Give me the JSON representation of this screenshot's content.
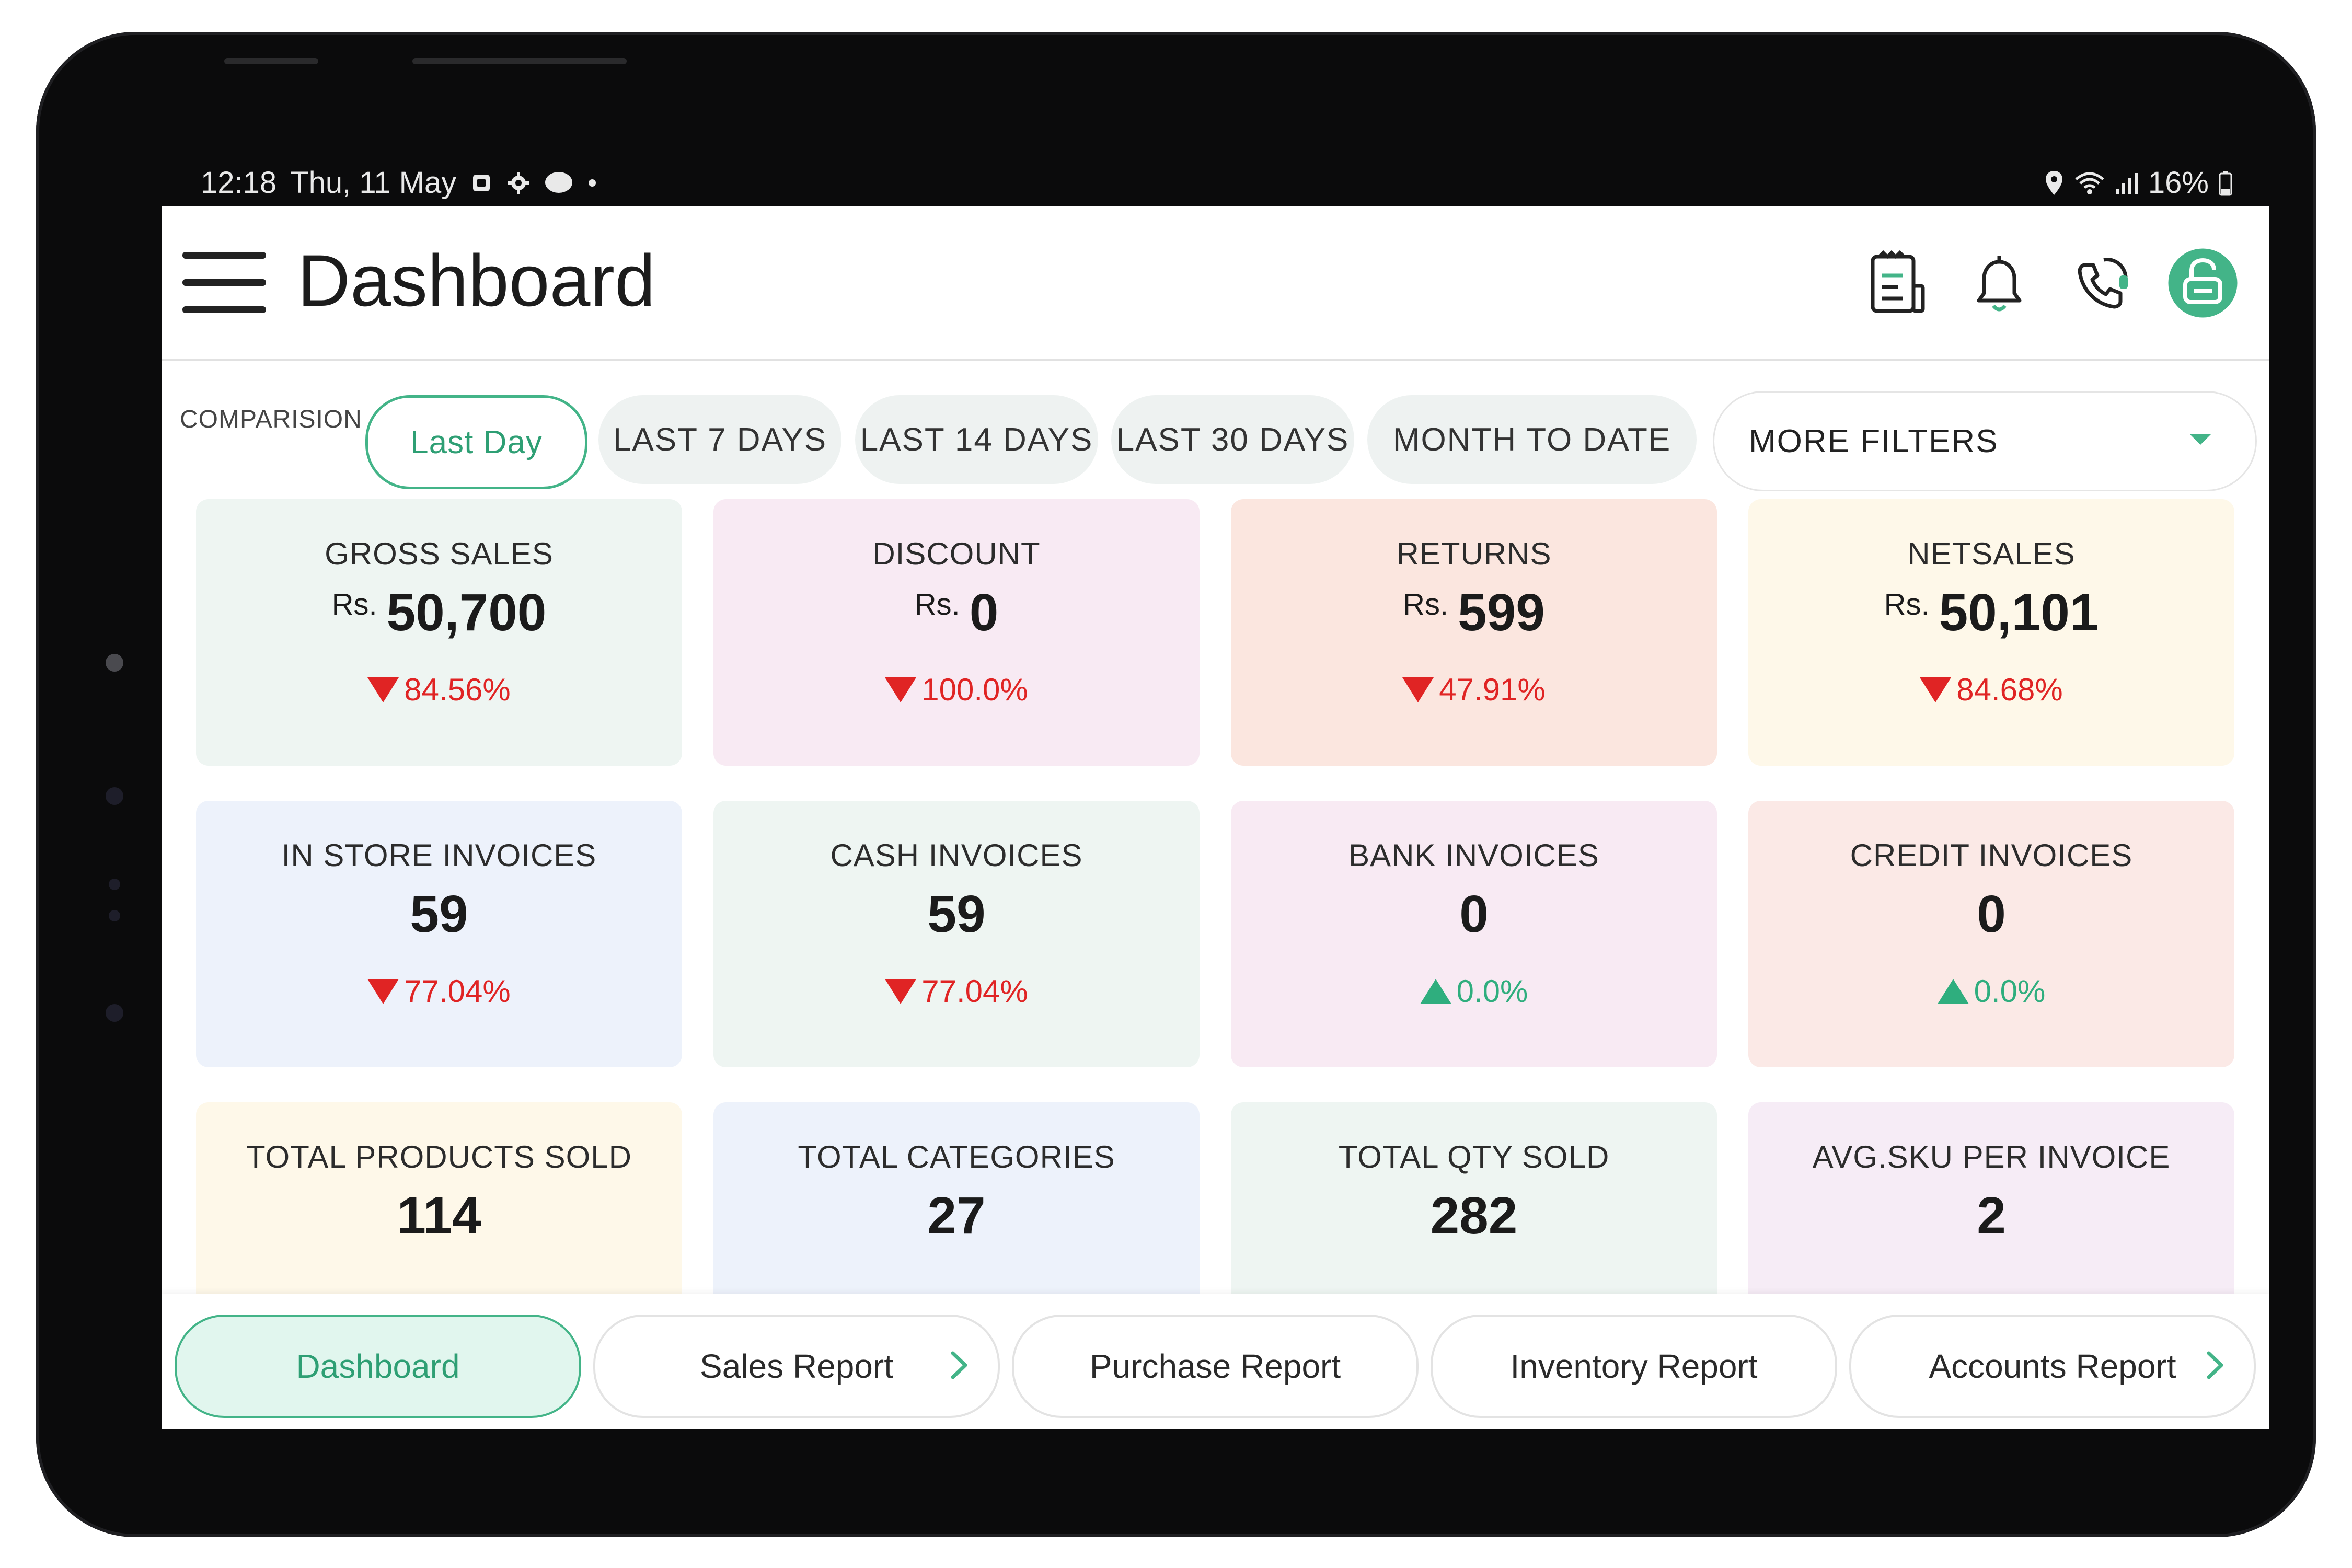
{
  "status_bar": {
    "time": "12:18",
    "date": "Thu, 11 May",
    "battery": "16%",
    "icons_left": [
      "notification-icon",
      "settings-icon",
      "message-icon",
      "dot-icon"
    ],
    "icons_right": [
      "location-icon",
      "wifi-icon",
      "signal-icon",
      "battery-icon"
    ]
  },
  "header": {
    "title": "Dashboard",
    "icons": [
      "report-icon",
      "bell-icon",
      "support-call-icon",
      "lock-icon"
    ],
    "accent_color": "#43b488"
  },
  "filters": {
    "comparison_label": "COMPARISION",
    "chips": [
      "Last Day",
      "LAST 7 DAYS",
      "LAST 14 DAYS",
      "LAST 30 DAYS",
      "MONTH TO DATE"
    ],
    "active_chip": "Last Day",
    "more_filters": "MORE FILTERS"
  },
  "cards": [
    {
      "label": "GROSS SALES",
      "currency": "Rs.",
      "value": "50,700",
      "change": "84.56%",
      "direction": "down",
      "bg": "#eef5f2"
    },
    {
      "label": "DISCOUNT",
      "currency": "Rs.",
      "value": "0",
      "change": "100.0%",
      "direction": "down",
      "bg": "#f8eaf3"
    },
    {
      "label": "RETURNS",
      "currency": "Rs.",
      "value": "599",
      "change": "47.91%",
      "direction": "down",
      "bg": "#fbe6df"
    },
    {
      "label": "NETSALES",
      "currency": "Rs.",
      "value": "50,101",
      "change": "84.68%",
      "direction": "down",
      "bg": "#fef8e9"
    },
    {
      "label": "IN STORE INVOICES",
      "currency": "",
      "value": "59",
      "change": "77.04%",
      "direction": "down",
      "bg": "#edf2fb"
    },
    {
      "label": "CASH INVOICES",
      "currency": "",
      "value": "59",
      "change": "77.04%",
      "direction": "down",
      "bg": "#eef5f2"
    },
    {
      "label": "BANK INVOICES",
      "currency": "",
      "value": "0",
      "change": "0.0%",
      "direction": "up",
      "bg": "#f8eaf3"
    },
    {
      "label": "CREDIT INVOICES",
      "currency": "",
      "value": "0",
      "change": "0.0%",
      "direction": "up",
      "bg": "#fbe9e6"
    },
    {
      "label": "TOTAL PRODUCTS SOLD",
      "currency": "",
      "value": "114",
      "change": "",
      "direction": "",
      "bg": "#fef8e9"
    },
    {
      "label": "TOTAL CATEGORIES",
      "currency": "",
      "value": "27",
      "change": "",
      "direction": "",
      "bg": "#edf2fb"
    },
    {
      "label": "TOTAL QTY SOLD",
      "currency": "",
      "value": "282",
      "change": "",
      "direction": "",
      "bg": "#eef5f2"
    },
    {
      "label": "AVG.SKU PER INVOICE",
      "currency": "",
      "value": "2",
      "change": "",
      "direction": "",
      "bg": "#f6ecf6"
    }
  ],
  "bottom_nav": {
    "items": [
      "Dashboard",
      "Sales Report",
      "Purchase Report",
      "Inventory Report",
      "Accounts Report"
    ],
    "active": "Dashboard"
  },
  "colors": {
    "down": "#e02424",
    "up": "#2fae7e"
  }
}
